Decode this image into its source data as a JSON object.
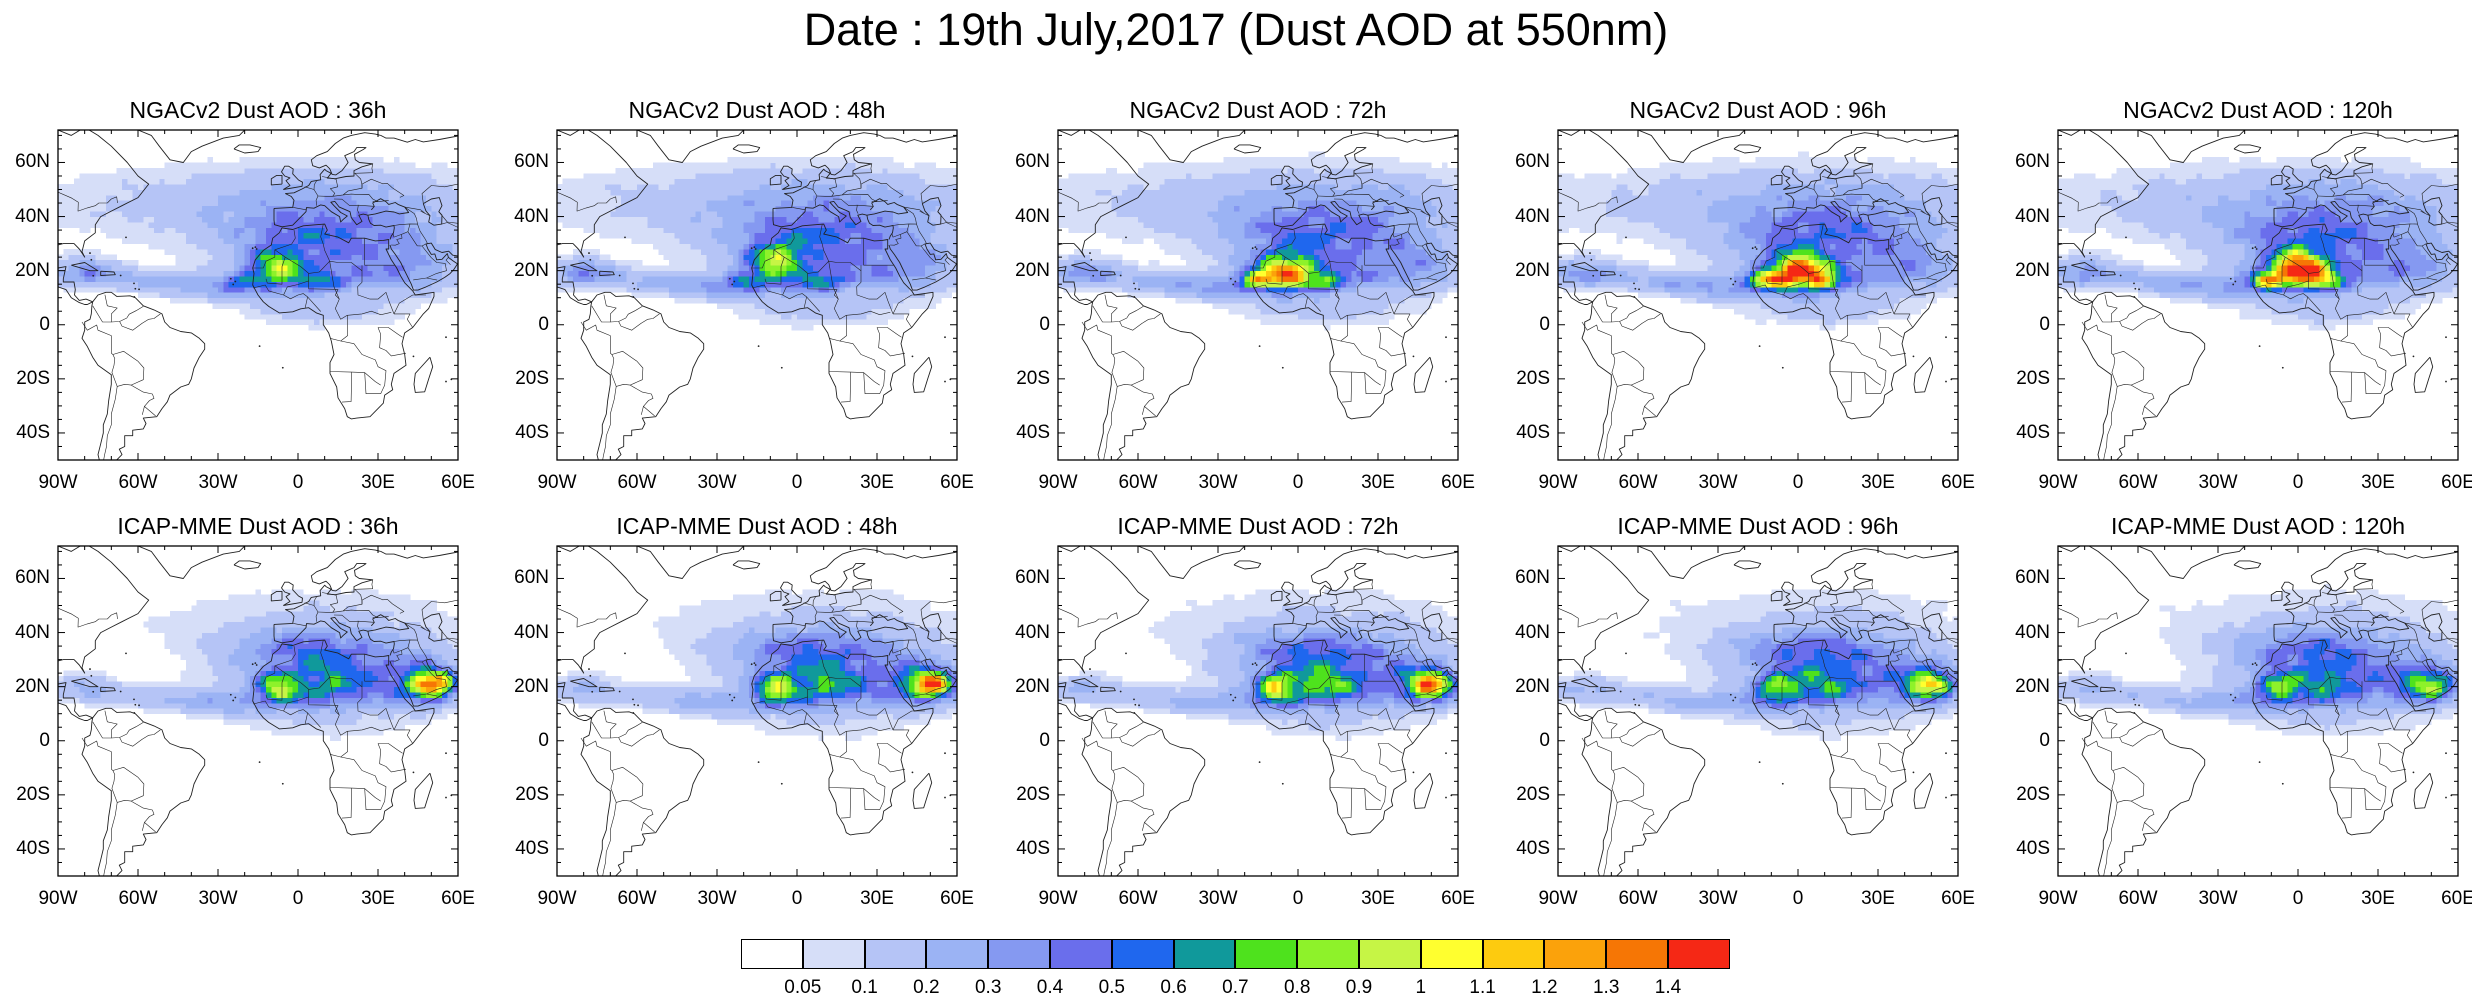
{
  "title": "Date : 19th July,2017 (Dust AOD at 550nm)",
  "lat_labels": [
    "60N",
    "40N",
    "20N",
    "0",
    "20S",
    "40S"
  ],
  "lon_labels": [
    "90W",
    "60W",
    "30W",
    "0",
    "30E",
    "60E"
  ],
  "panels": [
    {
      "title": "NGACv2 Dust AOD : 36h",
      "model": "NGAC",
      "lead": 36
    },
    {
      "title": "NGACv2 Dust AOD : 48h",
      "model": "NGAC",
      "lead": 48
    },
    {
      "title": "NGACv2 Dust AOD : 72h",
      "model": "NGAC",
      "lead": 72
    },
    {
      "title": "NGACv2 Dust AOD : 96h",
      "model": "NGAC",
      "lead": 96
    },
    {
      "title": "NGACv2 Dust AOD : 120h",
      "model": "NGAC",
      "lead": 120
    },
    {
      "title": "ICAP-MME Dust AOD : 36h",
      "model": "ICAP",
      "lead": 36
    },
    {
      "title": "ICAP-MME Dust AOD : 48h",
      "model": "ICAP",
      "lead": 48
    },
    {
      "title": "ICAP-MME Dust AOD : 72h",
      "model": "ICAP",
      "lead": 72
    },
    {
      "title": "ICAP-MME Dust AOD : 96h",
      "model": "ICAP",
      "lead": 96
    },
    {
      "title": "ICAP-MME Dust AOD : 120h",
      "model": "ICAP",
      "lead": 120
    }
  ],
  "colorbar": {
    "labels": [
      "0.05",
      "0.1",
      "0.2",
      "0.3",
      "0.4",
      "0.5",
      "0.6",
      "0.7",
      "0.8",
      "0.9",
      "1",
      "1.1",
      "1.2",
      "1.3",
      "1.4"
    ],
    "colors": [
      "#ffffff",
      "#d6def8",
      "#b5c4f6",
      "#9bb3f4",
      "#8599f1",
      "#6a6eec",
      "#1f67ee",
      "#10999b",
      "#4ee21d",
      "#8ef22a",
      "#c6f545",
      "#ffff2f",
      "#fdcb0f",
      "#fba20b",
      "#f67605",
      "#f52815"
    ]
  }
}
